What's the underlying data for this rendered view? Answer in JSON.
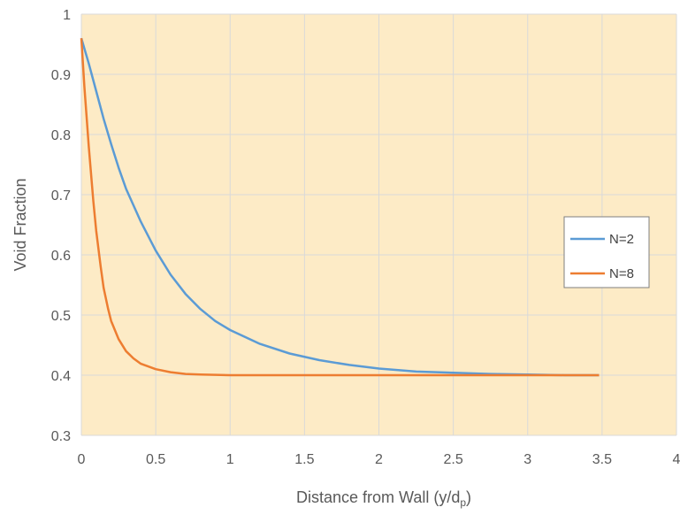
{
  "chart_data": {
    "type": "line",
    "title": "",
    "xlabel": "Distance from Wall (y/d",
    "xlabel_subscript": "p",
    "xlabel_suffix": ")",
    "ylabel": "Void Fraction",
    "xlim": [
      0,
      4
    ],
    "ylim": [
      0.3,
      1
    ],
    "x_ticks": [
      "0",
      "0.5",
      "1",
      "1.5",
      "2",
      "2.5",
      "3",
      "3.5",
      "4"
    ],
    "y_ticks": [
      "0.3",
      "0.4",
      "0.5",
      "0.6",
      "0.7",
      "0.8",
      "0.9",
      "1"
    ],
    "grid": true,
    "plot_background": "#fdebc6",
    "legend_position": "right",
    "series": [
      {
        "name": "N=2",
        "color": "#5b9bd5",
        "x": [
          0,
          0.05,
          0.1,
          0.15,
          0.2,
          0.25,
          0.3,
          0.4,
          0.5,
          0.6,
          0.7,
          0.8,
          0.9,
          1.0,
          1.2,
          1.4,
          1.6,
          1.8,
          2.0,
          2.25,
          2.5,
          2.75,
          3.0,
          3.25,
          3.48
        ],
        "y": [
          0.96,
          0.918,
          0.872,
          0.826,
          0.784,
          0.745,
          0.71,
          0.655,
          0.607,
          0.567,
          0.535,
          0.51,
          0.49,
          0.475,
          0.452,
          0.436,
          0.425,
          0.417,
          0.411,
          0.406,
          0.404,
          0.402,
          0.401,
          0.4,
          0.4
        ]
      },
      {
        "name": "N=8",
        "color": "#ed7d31",
        "x": [
          0,
          0.02,
          0.05,
          0.08,
          0.1,
          0.13,
          0.15,
          0.18,
          0.2,
          0.25,
          0.3,
          0.35,
          0.4,
          0.5,
          0.6,
          0.7,
          0.8,
          1.0,
          1.5,
          2.0,
          2.5,
          3.0,
          3.48
        ],
        "y": [
          0.96,
          0.88,
          0.78,
          0.69,
          0.64,
          0.58,
          0.545,
          0.51,
          0.49,
          0.46,
          0.44,
          0.428,
          0.419,
          0.41,
          0.405,
          0.402,
          0.401,
          0.4,
          0.4,
          0.4,
          0.4,
          0.4,
          0.4
        ]
      }
    ]
  }
}
